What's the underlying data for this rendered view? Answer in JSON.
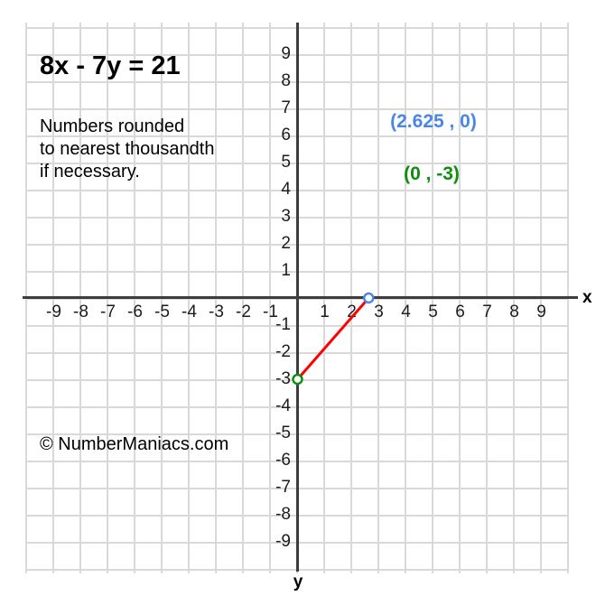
{
  "chart_data": {
    "type": "line",
    "title": "8x - 7y = 21",
    "note_lines": [
      "Numbers rounded",
      "to nearest thousandth",
      "if necessary."
    ],
    "copyright": "© NumberManiacs.com",
    "axes": {
      "x_label": "x",
      "y_label": "y",
      "x_range": [
        -10,
        10
      ],
      "y_range": [
        -10,
        10
      ],
      "grid": true,
      "x_tick_labels": [
        "-9",
        "-8",
        "-7",
        "-6",
        "-5",
        "-4",
        "-3",
        "-2",
        "-1",
        "1",
        "2",
        "3",
        "4",
        "5",
        "6",
        "7",
        "8",
        "9"
      ],
      "y_tick_labels": [
        "9",
        "8",
        "7",
        "6",
        "5",
        "4",
        "3",
        "2",
        "1",
        "-1",
        "-2",
        "-3",
        "-4",
        "-5",
        "-6",
        "-7",
        "-8",
        "-9"
      ]
    },
    "points": [
      {
        "name": "x-intercept",
        "x": 2.625,
        "y": 0,
        "label": "(2.625 , 0)",
        "color": "#4a86e8"
      },
      {
        "name": "y-intercept",
        "x": 0,
        "y": -3,
        "label": "(0 , -3)",
        "color": "#0d8e0d"
      }
    ],
    "segment": {
      "from": [
        0,
        -3
      ],
      "to": [
        2.625,
        0
      ],
      "color": "#ff0000",
      "width": 3
    },
    "colors": {
      "grid": "#d9d9d9",
      "axis": "#3d3d3d",
      "text": "#000000",
      "point_fill": "#ffffff"
    }
  }
}
